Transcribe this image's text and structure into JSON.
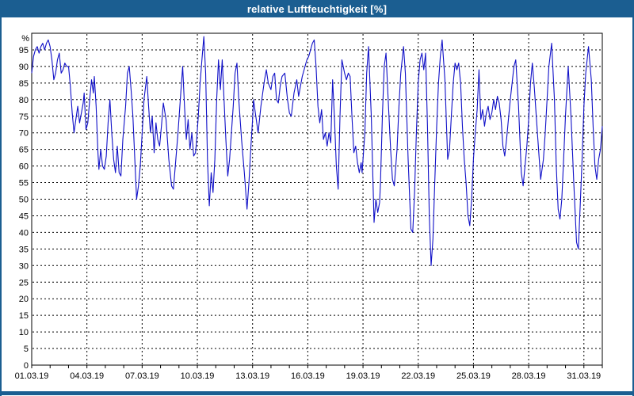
{
  "window": {
    "title": "relative Luftfeuchtigkeit [%]",
    "colors": {
      "chrome": "#1b5e91",
      "title_text": "#ffffff",
      "plot_background": "#ffffff",
      "grid": "#000000",
      "axis_text": "#000000",
      "series_line": "#1010c8"
    }
  },
  "chart_data": {
    "type": "line",
    "title": "relative Luftfeuchtigkeit [%]",
    "xlabel": "",
    "ylabel": "%",
    "ylim": [
      0,
      100
    ],
    "x_range_days": [
      0,
      31
    ],
    "grid": "dashed",
    "legend_position": "none",
    "y_ticks": [
      0,
      5,
      10,
      15,
      20,
      25,
      30,
      35,
      40,
      45,
      50,
      55,
      60,
      65,
      70,
      75,
      80,
      85,
      90,
      95
    ],
    "x_ticks": [
      {
        "day": 0,
        "label": "01.03.19"
      },
      {
        "day": 3,
        "label": "04.03.19"
      },
      {
        "day": 6,
        "label": "07.03.19"
      },
      {
        "day": 9,
        "label": "10.03.19"
      },
      {
        "day": 12,
        "label": "13.03.19"
      },
      {
        "day": 15,
        "label": "16.03.19"
      },
      {
        "day": 18,
        "label": "19.03.19"
      },
      {
        "day": 21,
        "label": "22.03.19"
      },
      {
        "day": 24,
        "label": "25.03.19"
      },
      {
        "day": 27,
        "label": "28.03.19"
      },
      {
        "day": 30,
        "label": "31.03.19"
      }
    ],
    "x_minor_tick_interval_days": 1,
    "series": [
      {
        "name": "relative Luftfeuchtigkeit [%]",
        "color": "#1010c8",
        "points": [
          [
            0,
            88
          ],
          [
            0.1,
            93
          ],
          [
            0.2,
            95
          ],
          [
            0.3,
            96
          ],
          [
            0.4,
            94
          ],
          [
            0.5,
            96
          ],
          [
            0.6,
            97
          ],
          [
            0.7,
            95
          ],
          [
            0.8,
            97
          ],
          [
            0.9,
            98
          ],
          [
            1,
            96
          ],
          [
            1.1,
            92
          ],
          [
            1.2,
            86
          ],
          [
            1.3,
            88
          ],
          [
            1.4,
            92
          ],
          [
            1.5,
            94
          ],
          [
            1.6,
            88
          ],
          [
            1.7,
            89
          ],
          [
            1.8,
            91
          ],
          [
            1.9,
            90
          ],
          [
            2,
            90
          ],
          [
            2.1,
            84
          ],
          [
            2.2,
            76
          ],
          [
            2.3,
            70
          ],
          [
            2.4,
            74
          ],
          [
            2.5,
            78
          ],
          [
            2.6,
            73
          ],
          [
            2.7,
            76
          ],
          [
            2.8,
            79
          ],
          [
            2.85,
            82
          ],
          [
            2.95,
            71
          ],
          [
            3.05,
            73
          ],
          [
            3.15,
            80
          ],
          [
            3.25,
            86
          ],
          [
            3.35,
            82
          ],
          [
            3.4,
            87
          ],
          [
            3.5,
            78
          ],
          [
            3.6,
            64
          ],
          [
            3.65,
            59
          ],
          [
            3.75,
            65
          ],
          [
            3.85,
            60
          ],
          [
            3.95,
            59
          ],
          [
            4.05,
            63
          ],
          [
            4.15,
            73
          ],
          [
            4.25,
            80
          ],
          [
            4.35,
            70
          ],
          [
            4.45,
            62
          ],
          [
            4.55,
            58
          ],
          [
            4.65,
            66
          ],
          [
            4.75,
            58
          ],
          [
            4.85,
            57
          ],
          [
            4.95,
            68
          ],
          [
            5.1,
            78
          ],
          [
            5.2,
            88
          ],
          [
            5.3,
            90
          ],
          [
            5.4,
            83
          ],
          [
            5.5,
            75
          ],
          [
            5.6,
            62
          ],
          [
            5.7,
            50
          ],
          [
            5.8,
            54
          ],
          [
            5.9,
            60
          ],
          [
            6,
            70
          ],
          [
            6.1,
            80
          ],
          [
            6.25,
            87
          ],
          [
            6.35,
            78
          ],
          [
            6.45,
            70
          ],
          [
            6.55,
            75
          ],
          [
            6.65,
            64
          ],
          [
            6.75,
            73
          ],
          [
            6.85,
            68
          ],
          [
            6.95,
            66
          ],
          [
            7.05,
            72
          ],
          [
            7.15,
            79
          ],
          [
            7.3,
            74
          ],
          [
            7.45,
            62
          ],
          [
            7.6,
            54
          ],
          [
            7.7,
            53
          ],
          [
            7.8,
            60
          ],
          [
            7.95,
            70
          ],
          [
            8.1,
            82
          ],
          [
            8.2,
            90
          ],
          [
            8.3,
            78
          ],
          [
            8.4,
            68
          ],
          [
            8.5,
            74
          ],
          [
            8.6,
            65
          ],
          [
            8.7,
            70
          ],
          [
            8.8,
            63
          ],
          [
            8.9,
            64
          ],
          [
            8.95,
            67
          ],
          [
            9.05,
            75
          ],
          [
            9.15,
            85
          ],
          [
            9.25,
            92
          ],
          [
            9.35,
            99
          ],
          [
            9.45,
            88
          ],
          [
            9.55,
            62
          ],
          [
            9.65,
            48
          ],
          [
            9.75,
            58
          ],
          [
            9.85,
            52
          ],
          [
            9.95,
            62
          ],
          [
            10.05,
            80
          ],
          [
            10.15,
            92
          ],
          [
            10.25,
            83
          ],
          [
            10.35,
            92
          ],
          [
            10.45,
            80
          ],
          [
            10.55,
            68
          ],
          [
            10.65,
            57
          ],
          [
            10.75,
            62
          ],
          [
            10.85,
            70
          ],
          [
            10.95,
            78
          ],
          [
            11.05,
            88
          ],
          [
            11.15,
            91
          ],
          [
            11.25,
            80
          ],
          [
            11.4,
            68
          ],
          [
            11.55,
            58
          ],
          [
            11.7,
            47
          ],
          [
            11.8,
            55
          ],
          [
            11.9,
            65
          ],
          [
            12,
            74
          ],
          [
            12.05,
            80
          ],
          [
            12.15,
            76
          ],
          [
            12.3,
            70
          ],
          [
            12.45,
            78
          ],
          [
            12.55,
            82
          ],
          [
            12.65,
            86
          ],
          [
            12.75,
            89
          ],
          [
            12.85,
            85
          ],
          [
            13,
            83
          ],
          [
            13.1,
            87
          ],
          [
            13.2,
            88
          ],
          [
            13.3,
            80
          ],
          [
            13.4,
            79
          ],
          [
            13.5,
            84
          ],
          [
            13.6,
            87
          ],
          [
            13.75,
            88
          ],
          [
            13.9,
            80
          ],
          [
            14,
            76
          ],
          [
            14.1,
            75
          ],
          [
            14.25,
            82
          ],
          [
            14.4,
            86
          ],
          [
            14.5,
            81
          ],
          [
            14.6,
            84
          ],
          [
            14.7,
            87
          ],
          [
            14.85,
            90
          ],
          [
            14.95,
            92
          ],
          [
            15.05,
            93
          ],
          [
            15.15,
            95
          ],
          [
            15.25,
            97
          ],
          [
            15.35,
            98
          ],
          [
            15.45,
            90
          ],
          [
            15.55,
            78
          ],
          [
            15.65,
            73
          ],
          [
            15.75,
            77
          ],
          [
            15.85,
            68
          ],
          [
            15.95,
            70
          ],
          [
            16.05,
            66
          ],
          [
            16.15,
            70
          ],
          [
            16.25,
            67
          ],
          [
            16.35,
            86
          ],
          [
            16.45,
            74
          ],
          [
            16.55,
            60
          ],
          [
            16.65,
            53
          ],
          [
            16.75,
            75
          ],
          [
            16.85,
            92
          ],
          [
            17,
            88
          ],
          [
            17.1,
            86
          ],
          [
            17.2,
            88
          ],
          [
            17.3,
            87
          ],
          [
            17.4,
            75
          ],
          [
            17.5,
            64
          ],
          [
            17.6,
            66
          ],
          [
            17.7,
            61
          ],
          [
            17.8,
            58
          ],
          [
            17.9,
            61
          ],
          [
            17.95,
            58
          ],
          [
            18.1,
            70
          ],
          [
            18.2,
            88
          ],
          [
            18.3,
            96
          ],
          [
            18.45,
            75
          ],
          [
            18.6,
            43
          ],
          [
            18.7,
            50
          ],
          [
            18.8,
            46
          ],
          [
            18.9,
            49
          ],
          [
            18.95,
            55
          ],
          [
            19.05,
            75
          ],
          [
            19.15,
            90
          ],
          [
            19.25,
            94
          ],
          [
            19.35,
            82
          ],
          [
            19.5,
            65
          ],
          [
            19.6,
            56
          ],
          [
            19.7,
            54
          ],
          [
            19.85,
            65
          ],
          [
            19.95,
            78
          ],
          [
            20.05,
            88
          ],
          [
            20.2,
            96
          ],
          [
            20.3,
            88
          ],
          [
            20.45,
            62
          ],
          [
            20.6,
            41
          ],
          [
            20.7,
            40
          ],
          [
            20.8,
            52
          ],
          [
            20.9,
            70
          ],
          [
            21,
            85
          ],
          [
            21.1,
            92
          ],
          [
            21.2,
            94
          ],
          [
            21.3,
            89
          ],
          [
            21.4,
            94
          ],
          [
            21.5,
            72
          ],
          [
            21.6,
            45
          ],
          [
            21.7,
            30
          ],
          [
            21.8,
            38
          ],
          [
            21.9,
            55
          ],
          [
            22,
            72
          ],
          [
            22.1,
            85
          ],
          [
            22.2,
            93
          ],
          [
            22.3,
            98
          ],
          [
            22.45,
            86
          ],
          [
            22.6,
            62
          ],
          [
            22.7,
            65
          ],
          [
            22.8,
            75
          ],
          [
            22.9,
            85
          ],
          [
            23,
            91
          ],
          [
            23.1,
            89
          ],
          [
            23.2,
            91
          ],
          [
            23.3,
            85
          ],
          [
            23.4,
            72
          ],
          [
            23.5,
            62
          ],
          [
            23.6,
            55
          ],
          [
            23.7,
            45
          ],
          [
            23.8,
            42
          ],
          [
            23.9,
            50
          ],
          [
            24,
            62
          ],
          [
            24.1,
            70
          ],
          [
            24.2,
            77
          ],
          [
            24.3,
            89
          ],
          [
            24.4,
            74
          ],
          [
            24.5,
            77
          ],
          [
            24.6,
            72
          ],
          [
            24.7,
            76
          ],
          [
            24.8,
            78
          ],
          [
            24.9,
            74
          ],
          [
            25,
            76
          ],
          [
            25.1,
            80
          ],
          [
            25.2,
            77
          ],
          [
            25.3,
            81
          ],
          [
            25.4,
            79
          ],
          [
            25.5,
            74
          ],
          [
            25.6,
            66
          ],
          [
            25.7,
            63
          ],
          [
            25.8,
            68
          ],
          [
            25.9,
            74
          ],
          [
            26,
            80
          ],
          [
            26.1,
            85
          ],
          [
            26.2,
            90
          ],
          [
            26.3,
            92
          ],
          [
            26.45,
            78
          ],
          [
            26.6,
            58
          ],
          [
            26.7,
            54
          ],
          [
            26.8,
            60
          ],
          [
            26.9,
            66
          ],
          [
            27,
            74
          ],
          [
            27.1,
            85
          ],
          [
            27.2,
            91
          ],
          [
            27.3,
            84
          ],
          [
            27.4,
            76
          ],
          [
            27.5,
            68
          ],
          [
            27.65,
            56
          ],
          [
            27.8,
            62
          ],
          [
            27.9,
            70
          ],
          [
            28,
            80
          ],
          [
            28.1,
            90
          ],
          [
            28.25,
            97
          ],
          [
            28.4,
            80
          ],
          [
            28.5,
            60
          ],
          [
            28.6,
            47
          ],
          [
            28.7,
            44
          ],
          [
            28.8,
            50
          ],
          [
            28.9,
            62
          ],
          [
            29,
            75
          ],
          [
            29.15,
            90
          ],
          [
            29.3,
            75
          ],
          [
            29.45,
            55
          ],
          [
            29.6,
            37
          ],
          [
            29.7,
            35
          ],
          [
            29.8,
            48
          ],
          [
            29.9,
            62
          ],
          [
            30,
            78
          ],
          [
            30.1,
            88
          ],
          [
            30.25,
            96
          ],
          [
            30.4,
            86
          ],
          [
            30.5,
            72
          ],
          [
            30.6,
            60
          ],
          [
            30.7,
            56
          ],
          [
            30.8,
            62
          ],
          [
            30.9,
            65
          ],
          [
            31,
            72
          ]
        ]
      }
    ]
  }
}
